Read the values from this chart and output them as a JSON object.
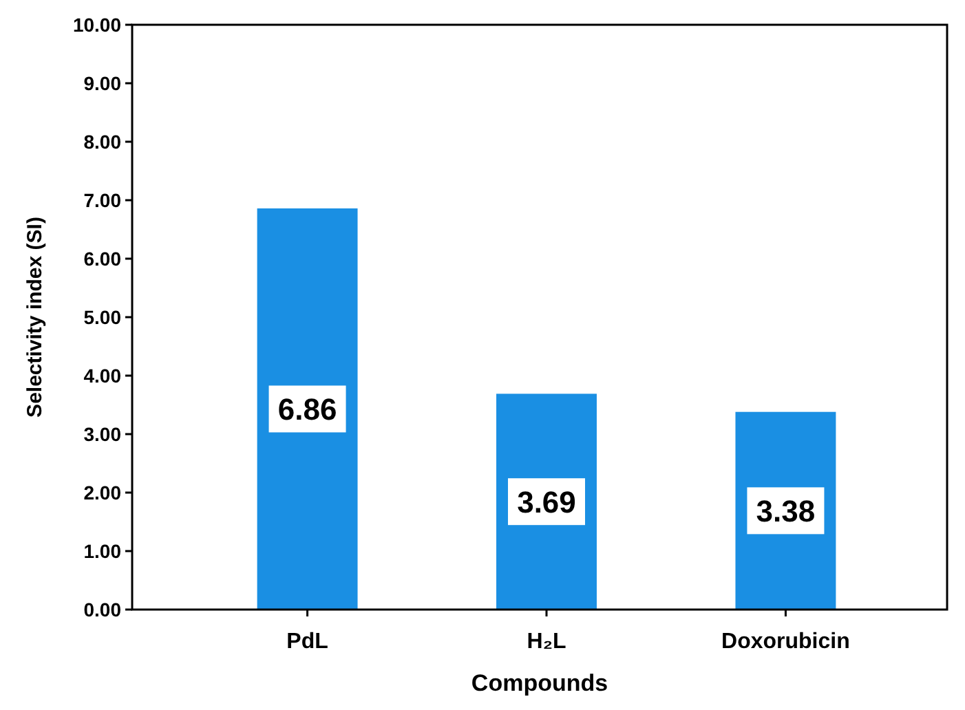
{
  "chart_data": {
    "type": "bar",
    "xlabel": "Compounds",
    "ylabel": "Selectivity index (SI)",
    "categories": [
      "PdL",
      "H₂L",
      "Doxorubicin"
    ],
    "values": [
      6.86,
      3.69,
      3.38
    ],
    "color": "#1a8fe3",
    "data_labels": true,
    "ylim": [
      0,
      10
    ],
    "yticks": [
      {
        "value": 0,
        "label": "0.00"
      },
      {
        "value": 1,
        "label": "1.00"
      },
      {
        "value": 2,
        "label": "2.00"
      },
      {
        "value": 3,
        "label": "3.00"
      },
      {
        "value": 4,
        "label": "4.00"
      },
      {
        "value": 5,
        "label": "5.00"
      },
      {
        "value": 6,
        "label": "6.00"
      },
      {
        "value": 7,
        "label": "7.00"
      },
      {
        "value": 8,
        "label": "8.00"
      },
      {
        "value": 9,
        "label": "9.00"
      },
      {
        "value": 10,
        "label": "10.00"
      }
    ],
    "grid": false
  }
}
